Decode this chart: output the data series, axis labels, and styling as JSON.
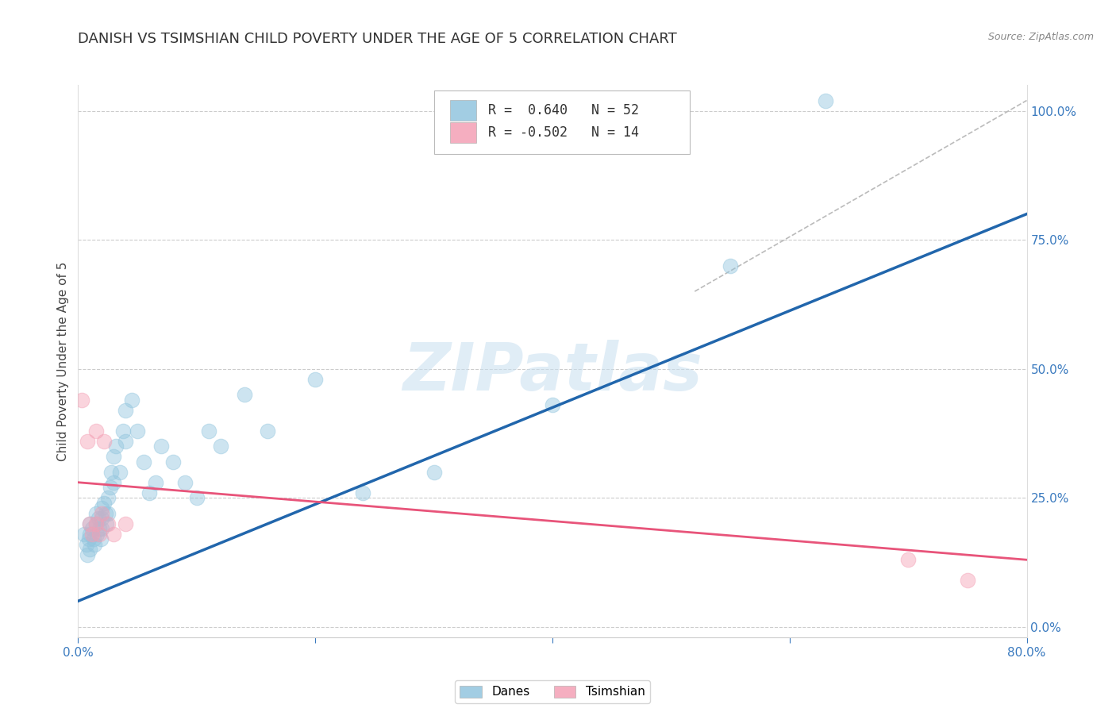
{
  "title": "DANISH VS TSIMSHIAN CHILD POVERTY UNDER THE AGE OF 5 CORRELATION CHART",
  "source": "Source: ZipAtlas.com",
  "ylabel": "Child Poverty Under the Age of 5",
  "xlim": [
    0.0,
    0.8
  ],
  "ylim": [
    -0.02,
    1.05
  ],
  "xticks": [
    0.0,
    0.2,
    0.4,
    0.6,
    0.8
  ],
  "xticklabels": [
    "0.0%",
    "",
    "",
    "",
    "80.0%"
  ],
  "yticks_left": [],
  "yticks_right": [
    0.0,
    0.25,
    0.5,
    0.75,
    1.0
  ],
  "yticklabels_right": [
    "0.0%",
    "25.0%",
    "50.0%",
    "75.0%",
    "100.0%"
  ],
  "watermark": "ZIPatlas",
  "legend_r_danish": "R =  0.640",
  "legend_n_danish": "N = 52",
  "legend_r_tsimshian": "R = -0.502",
  "legend_n_tsimshian": "N = 14",
  "danes_color": "#92c5de",
  "tsimshian_color": "#f4a0b5",
  "danes_line_color": "#2166ac",
  "tsimshian_line_color": "#e8547a",
  "danes_scatter_x": [
    0.005,
    0.007,
    0.008,
    0.009,
    0.01,
    0.01,
    0.01,
    0.012,
    0.013,
    0.014,
    0.015,
    0.015,
    0.016,
    0.017,
    0.018,
    0.019,
    0.02,
    0.02,
    0.02,
    0.022,
    0.023,
    0.024,
    0.025,
    0.025,
    0.027,
    0.028,
    0.03,
    0.03,
    0.032,
    0.035,
    0.038,
    0.04,
    0.04,
    0.045,
    0.05,
    0.055,
    0.06,
    0.065,
    0.07,
    0.08,
    0.09,
    0.1,
    0.11,
    0.12,
    0.14,
    0.16,
    0.2,
    0.24,
    0.3,
    0.4,
    0.55,
    0.63
  ],
  "danes_scatter_y": [
    0.18,
    0.16,
    0.14,
    0.17,
    0.2,
    0.18,
    0.15,
    0.19,
    0.17,
    0.16,
    0.22,
    0.2,
    0.18,
    0.21,
    0.19,
    0.17,
    0.23,
    0.21,
    0.19,
    0.24,
    0.22,
    0.2,
    0.25,
    0.22,
    0.27,
    0.3,
    0.33,
    0.28,
    0.35,
    0.3,
    0.38,
    0.42,
    0.36,
    0.44,
    0.38,
    0.32,
    0.26,
    0.28,
    0.35,
    0.32,
    0.28,
    0.25,
    0.38,
    0.35,
    0.45,
    0.38,
    0.48,
    0.26,
    0.3,
    0.43,
    0.7,
    1.02
  ],
  "tsimshian_scatter_x": [
    0.003,
    0.008,
    0.01,
    0.012,
    0.015,
    0.015,
    0.018,
    0.02,
    0.022,
    0.025,
    0.03,
    0.04,
    0.7,
    0.75
  ],
  "tsimshian_scatter_y": [
    0.44,
    0.36,
    0.2,
    0.18,
    0.38,
    0.2,
    0.18,
    0.22,
    0.36,
    0.2,
    0.18,
    0.2,
    0.13,
    0.09
  ],
  "danes_line_x": [
    0.0,
    0.8
  ],
  "danes_line_y": [
    0.05,
    0.8
  ],
  "tsimshian_line_x": [
    0.0,
    0.8
  ],
  "tsimshian_line_y": [
    0.28,
    0.13
  ],
  "diagonal_line_x": [
    0.52,
    0.8
  ],
  "diagonal_line_y": [
    0.65,
    1.02
  ],
  "background_color": "#ffffff",
  "grid_color": "#cccccc",
  "title_fontsize": 13,
  "axis_label_fontsize": 11,
  "tick_fontsize": 11,
  "scatter_size": 180,
  "scatter_alpha": 0.45,
  "scatter_edgewidth": 0.8
}
